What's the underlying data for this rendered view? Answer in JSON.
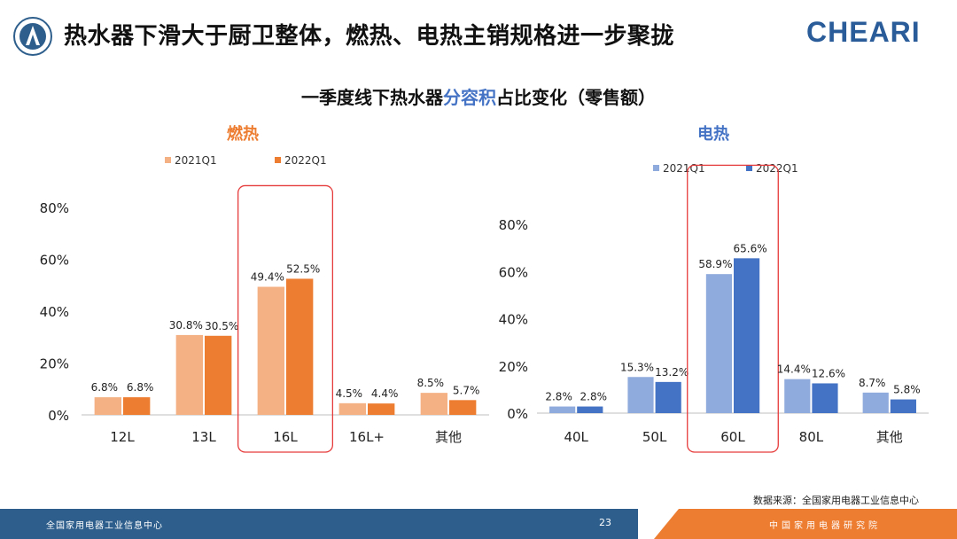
{
  "header": {
    "title": "热水器下滑大于厨卫整体，燃热、电热主销规格进一步聚拢",
    "brand": "CHEARI"
  },
  "subtitle": {
    "before": "一季度线下热水器",
    "highlight": "分容积",
    "after": "占比变化（零售额）"
  },
  "colors": {
    "light_orange": "#f4b183",
    "orange": "#ed7d31",
    "light_blue": "#8faadc",
    "blue": "#4472c4",
    "highlight_box": "#e63b3b"
  },
  "chart_data": [
    {
      "type": "bar",
      "title": "燃热",
      "categories": [
        "12L",
        "13L",
        "16L",
        "16L+",
        "其他"
      ],
      "series": [
        {
          "name": "2021Q1",
          "values": [
            6.8,
            30.8,
            49.4,
            4.5,
            8.5
          ],
          "labels": [
            "6.8%",
            "30.8%",
            "49.4%",
            "4.5%",
            "8.5%"
          ]
        },
        {
          "name": "2022Q1",
          "values": [
            6.8,
            30.5,
            52.5,
            4.4,
            5.7
          ],
          "labels": [
            "6.8%",
            "30.5%",
            "52.5%",
            "4.4%",
            "5.7%"
          ]
        }
      ],
      "ylim": [
        0,
        80
      ],
      "yticks": [
        "0%",
        "20%",
        "40%",
        "60%",
        "80%"
      ],
      "highlight_category": "16L",
      "legend_position": "top"
    },
    {
      "type": "bar",
      "title": "电热",
      "categories": [
        "40L",
        "50L",
        "60L",
        "80L",
        "其他"
      ],
      "series": [
        {
          "name": "2021Q1",
          "values": [
            2.8,
            15.3,
            58.9,
            14.4,
            8.7
          ],
          "labels": [
            "2.8%",
            "15.3%",
            "58.9%",
            "14.4%",
            "8.7%"
          ]
        },
        {
          "name": "2022Q1",
          "values": [
            2.8,
            13.2,
            65.6,
            12.6,
            5.8
          ],
          "labels": [
            "2.8%",
            "13.2%",
            "65.6%",
            "12.6%",
            "5.8%"
          ]
        }
      ],
      "ylim": [
        0,
        80
      ],
      "yticks": [
        "0%",
        "20%",
        "40%",
        "60%",
        "80%"
      ],
      "highlight_category": "60L",
      "legend_position": "top"
    }
  ],
  "source": "数据来源：全国家用电器工业信息中心",
  "footer": {
    "left": "全国家用电器工业信息中心",
    "page": "23",
    "right": "中国家用电器研究院"
  }
}
